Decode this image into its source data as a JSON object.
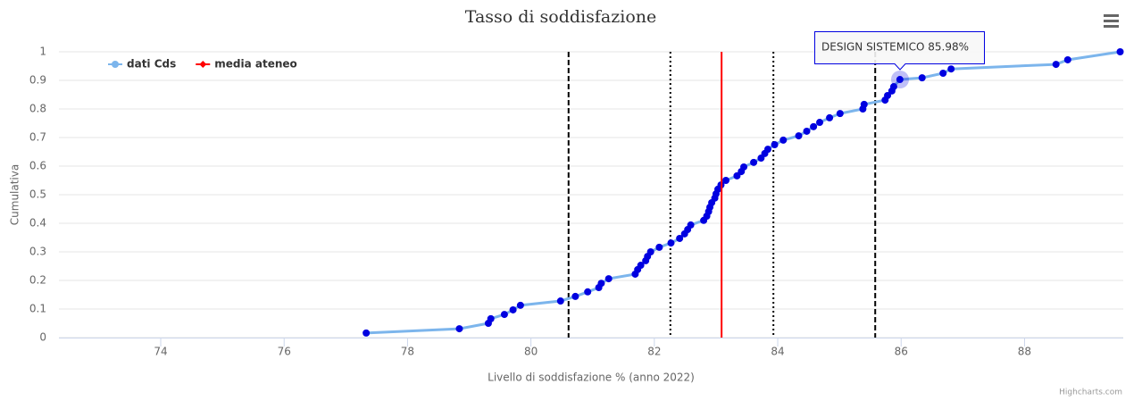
{
  "chart_data": {
    "type": "line",
    "title": "Tasso di soddisfazione",
    "x_label": "Livello di soddisfazione % (anno 2022)",
    "y_label": "Cumulativa",
    "credits": "Highcharts.com",
    "tooltip": "DESIGN SISTEMICO 85.98%",
    "xlim": [
      72.35,
      89.6
    ],
    "ylim": [
      0,
      1
    ],
    "xticks": [
      74,
      76,
      78,
      80,
      82,
      84,
      86,
      88
    ],
    "yticks": [
      0,
      0.1,
      0.2,
      0.3,
      0.4,
      0.5,
      0.6,
      0.7,
      0.8,
      0.9,
      1
    ],
    "grid": true,
    "legend": "top-left",
    "series": [
      {
        "name": "dati Cds",
        "color": "#7cb5ec",
        "marker_color": "#0000e0",
        "x": [
          77.33,
          78.84,
          79.31,
          79.35,
          79.57,
          79.71,
          79.83,
          80.48,
          80.72,
          80.92,
          81.1,
          81.14,
          81.26,
          81.69,
          81.73,
          81.78,
          81.86,
          81.89,
          81.94,
          82.08,
          82.27,
          82.41,
          82.49,
          82.54,
          82.59,
          82.8,
          82.85,
          82.88,
          82.9,
          82.93,
          82.98,
          83.0,
          83.03,
          83.08,
          83.16,
          83.34,
          83.41,
          83.45,
          83.61,
          83.73,
          83.79,
          83.84,
          83.95,
          84.09,
          84.34,
          84.47,
          84.58,
          84.68,
          84.84,
          85.01,
          85.38,
          85.4,
          85.74,
          85.78,
          85.85,
          85.88,
          85.98,
          86.34,
          86.68,
          86.81,
          88.51,
          88.7,
          89.55
        ],
        "values": [
          0.016,
          0.031,
          0.05,
          0.066,
          0.081,
          0.097,
          0.113,
          0.128,
          0.144,
          0.16,
          0.175,
          0.19,
          0.206,
          0.222,
          0.238,
          0.253,
          0.269,
          0.284,
          0.3,
          0.316,
          0.331,
          0.347,
          0.363,
          0.378,
          0.394,
          0.41,
          0.425,
          0.441,
          0.456,
          0.472,
          0.488,
          0.503,
          0.519,
          0.534,
          0.55,
          0.566,
          0.581,
          0.597,
          0.613,
          0.628,
          0.644,
          0.659,
          0.675,
          0.691,
          0.706,
          0.722,
          0.738,
          0.753,
          0.769,
          0.784,
          0.8,
          0.816,
          0.831,
          0.847,
          0.863,
          0.878,
          0.903,
          0.909,
          0.925,
          0.94,
          0.956,
          0.972,
          1.0
        ]
      },
      {
        "name": "media ateneo",
        "color": "#ff0000",
        "x": [
          83.09,
          83.09
        ],
        "values": [
          0,
          1
        ]
      }
    ],
    "plot_lines": [
      {
        "value": 80.61,
        "style": "dashed",
        "color": "#000000"
      },
      {
        "value": 82.26,
        "style": "dotted",
        "color": "#000000"
      },
      {
        "value": 83.93,
        "style": "dotted",
        "color": "#000000"
      },
      {
        "value": 85.58,
        "style": "dashed",
        "color": "#000000"
      }
    ]
  }
}
